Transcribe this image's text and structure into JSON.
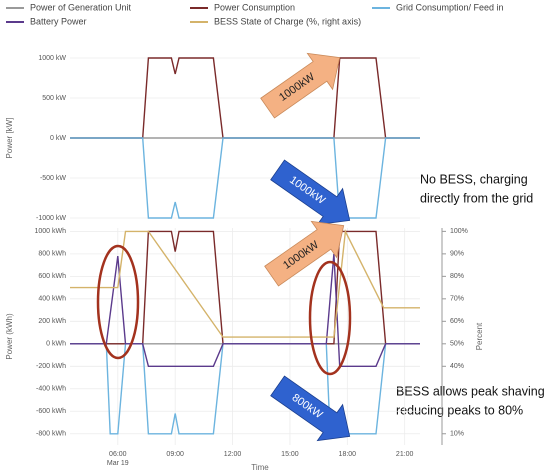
{
  "chart_data": [
    {
      "type": "line",
      "y_label": "Power [kW]",
      "xlim": [
        3.5,
        21.8
      ],
      "ylim": [
        -1100,
        1100
      ],
      "yticks": [
        {
          "value": 1000,
          "label": "1000 kW"
        },
        {
          "value": 500,
          "label": "500 kW"
        },
        {
          "value": 0,
          "label": "0 kW"
        },
        {
          "value": -500,
          "label": "-500 kW"
        },
        {
          "value": -1000,
          "label": "-1000 kW"
        }
      ],
      "series": [
        {
          "name": "Power of Generation Unit",
          "color": "#9a9a9a",
          "x": [
            3.5,
            21.8
          ],
          "values": [
            0,
            0
          ]
        },
        {
          "name": "Power Consumption",
          "color": "#7a2a2a",
          "x": [
            3.5,
            7.3,
            7.6,
            8.8,
            9.0,
            9.2,
            11.0,
            11.5,
            17.3,
            17.6,
            19.5,
            20.0,
            21.8
          ],
          "values": [
            0,
            0,
            1000,
            1000,
            800,
            1000,
            1000,
            0,
            0,
            1000,
            1000,
            0,
            0
          ]
        },
        {
          "name": "Grid Consumption/ Feed in",
          "color": "#6cb4df",
          "x": [
            3.5,
            7.3,
            7.6,
            8.8,
            9.0,
            9.2,
            11.0,
            11.5,
            17.3,
            17.6,
            19.5,
            20.0,
            21.8
          ],
          "values": [
            0,
            0,
            -1000,
            -1000,
            -800,
            -1000,
            -1000,
            0,
            0,
            -1000,
            -1000,
            0,
            0
          ]
        }
      ],
      "annotations": [
        "1000kW",
        "1000kW"
      ],
      "note": [
        "No BESS, charging",
        "directly from the grid"
      ]
    },
    {
      "type": "line",
      "y_label": "Power (kWh)",
      "y2_label": "Percent",
      "x_label": "Time",
      "x_date_label": "Mar 19",
      "xlim": [
        3.5,
        21.8
      ],
      "xticks": [
        {
          "value": 6,
          "label": "06:00"
        },
        {
          "value": 9,
          "label": "09:00"
        },
        {
          "value": 12,
          "label": "12:00"
        },
        {
          "value": 15,
          "label": "15:00"
        },
        {
          "value": 18,
          "label": "18:00"
        },
        {
          "value": 21,
          "label": "21:00"
        }
      ],
      "ylim": [
        -900,
        1030
      ],
      "yticks": [
        {
          "value": 1000,
          "label": "1000 kWh"
        },
        {
          "value": 800,
          "label": "800 kWh"
        },
        {
          "value": 600,
          "label": "600 kWh"
        },
        {
          "value": 400,
          "label": "400 kWh"
        },
        {
          "value": 200,
          "label": "200 kWh"
        },
        {
          "value": 0,
          "label": "0 kWh"
        },
        {
          "value": -200,
          "label": "-200 kWh"
        },
        {
          "value": -400,
          "label": "-400 kWh"
        },
        {
          "value": -600,
          "label": "-600 kWh"
        },
        {
          "value": -800,
          "label": "-800 kWh"
        }
      ],
      "y2lim": [
        5,
        101.5
      ],
      "y2ticks": [
        {
          "value": 100,
          "label": "100%"
        },
        {
          "value": 90,
          "label": "90%"
        },
        {
          "value": 80,
          "label": "80%"
        },
        {
          "value": 70,
          "label": "70%"
        },
        {
          "value": 60,
          "label": "60%"
        },
        {
          "value": 50,
          "label": "50%"
        },
        {
          "value": 40,
          "label": "40%"
        },
        {
          "value": 10,
          "label": "10%"
        }
      ],
      "series": [
        {
          "name": "Power of Generation Unit",
          "color": "#9a9a9a",
          "x": [
            3.5,
            21.8
          ],
          "values": [
            0,
            0
          ]
        },
        {
          "name": "Power Consumption",
          "color": "#7a2a2a",
          "x": [
            3.5,
            7.3,
            7.6,
            8.8,
            9.0,
            9.2,
            11.0,
            11.5,
            17.3,
            17.6,
            19.5,
            20.0,
            21.8
          ],
          "values": [
            0,
            0,
            1000,
            1000,
            820,
            1000,
            1000,
            0,
            0,
            1000,
            1000,
            0,
            0
          ]
        },
        {
          "name": "Grid Consumption/ Feed in",
          "color": "#6cb4df",
          "x": [
            3.5,
            5.4,
            5.6,
            6.0,
            6.4,
            7.3,
            7.6,
            8.8,
            9.0,
            9.2,
            11.0,
            11.5,
            16.9,
            17.1,
            17.3,
            17.6,
            19.5,
            20.0,
            21.8
          ],
          "values": [
            0,
            0,
            -800,
            -800,
            0,
            0,
            -800,
            -800,
            -620,
            -800,
            -800,
            0,
            0,
            -800,
            -800,
            -800,
            -800,
            0,
            0
          ]
        },
        {
          "name": "Battery Power",
          "color": "#5b3a8c",
          "x": [
            3.5,
            5.4,
            6.0,
            6.4,
            7.3,
            7.6,
            11.0,
            11.5,
            16.9,
            17.3,
            17.6,
            19.5,
            20.0,
            21.8
          ],
          "values": [
            0,
            0,
            780,
            0,
            0,
            -200,
            -200,
            0,
            0,
            800,
            -200,
            -200,
            0,
            0
          ]
        },
        {
          "name": "BESS State of Charge (%, right axis)",
          "color": "#d4b36a",
          "axis": "y2",
          "x": [
            3.5,
            6.0,
            6.4,
            7.6,
            11.5,
            17.3,
            17.9,
            19.9,
            21.8
          ],
          "values": [
            75,
            75,
            100,
            100,
            53,
            53,
            100,
            66,
            66
          ]
        }
      ],
      "annotations": [
        "1000kW",
        "800kW"
      ],
      "note": [
        "BESS allows peak shaving",
        "reducing peaks to 80%"
      ]
    }
  ]
}
